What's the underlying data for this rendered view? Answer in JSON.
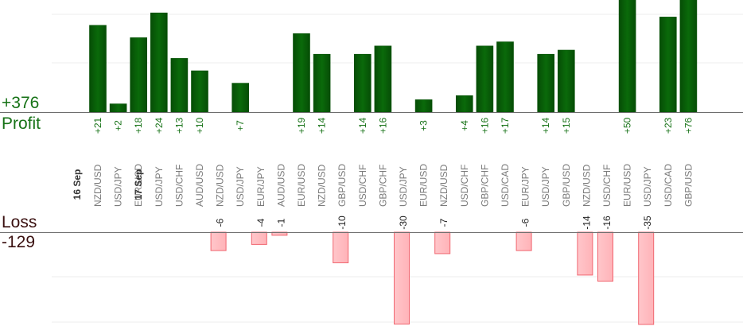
{
  "summary": {
    "profit_total": "+376",
    "profit_label": "Profit",
    "loss_label": "Loss",
    "loss_total": "-129"
  },
  "colors": {
    "profit_bar": "#0a6a0a",
    "profit_bar_dark": "#064d06",
    "profit_text": "#167216",
    "loss_bar": "#ffb3b8",
    "loss_bar_border": "#f06670",
    "loss_text": "#222222"
  },
  "chart_data": {
    "type": "bar",
    "title": "",
    "profit_axis_ylim": [
      0,
      24
    ],
    "loss_axis_ylim": [
      0,
      30
    ],
    "grid": true,
    "date_groups": [
      {
        "date": "16 Sep",
        "start_index": 0
      },
      {
        "date": "17 Sep",
        "start_index": 3
      }
    ],
    "categories": [
      "NZD/USD",
      "USD/JPY",
      "EUR/USD",
      "USD/JPY",
      "USD/CHF",
      "AUD/USD",
      "NZD/USD",
      "USD/JPY",
      "EUR/JPY",
      "AUD/USD",
      "EUR/USD",
      "NZD/USD",
      "GBP/USD",
      "USD/CHF",
      "GBP/CHF",
      "USD/JPY",
      "EUR/USD",
      "NZD/USD",
      "USD/CHF",
      "GBP/CHF",
      "USD/CAD",
      "EUR/JPY",
      "USD/JPY",
      "GBP/USD",
      "NZD/USD",
      "USD/CHF",
      "EUR/USD",
      "USD/JPY",
      "USD/CAD",
      "GBP/USD"
    ],
    "series": [
      {
        "name": "Profit",
        "values": [
          21,
          2,
          18,
          24,
          13,
          10,
          null,
          7,
          null,
          null,
          19,
          14,
          null,
          14,
          16,
          null,
          3,
          null,
          4,
          16,
          17,
          null,
          14,
          15,
          null,
          null,
          50,
          null,
          23,
          76
        ]
      },
      {
        "name": "Loss",
        "values": [
          null,
          null,
          null,
          null,
          null,
          null,
          -6,
          null,
          -4,
          -1,
          null,
          null,
          -10,
          null,
          null,
          -30,
          null,
          -7,
          null,
          null,
          null,
          -6,
          null,
          null,
          -14,
          -16,
          null,
          -35,
          null,
          null
        ]
      }
    ],
    "profit_labels": [
      "+21",
      "+2",
      "+18",
      "+24",
      "+13",
      "+10",
      "",
      "+7",
      "",
      "",
      "+19",
      "+14",
      "",
      "+14",
      "+16",
      "",
      "+3",
      "",
      "+4",
      "+16",
      "+17",
      "",
      "+14",
      "+15",
      "",
      "",
      "+50",
      "",
      "+23",
      "+76"
    ],
    "loss_labels": [
      "",
      "",
      "",
      "",
      "",
      "",
      "-6",
      "",
      "-4",
      "-1",
      "",
      "",
      "-10",
      "",
      "",
      "-30",
      "",
      "-7",
      "",
      "",
      "",
      "-6",
      "",
      "",
      "-14",
      "-16",
      "",
      "-35",
      "",
      ""
    ]
  }
}
